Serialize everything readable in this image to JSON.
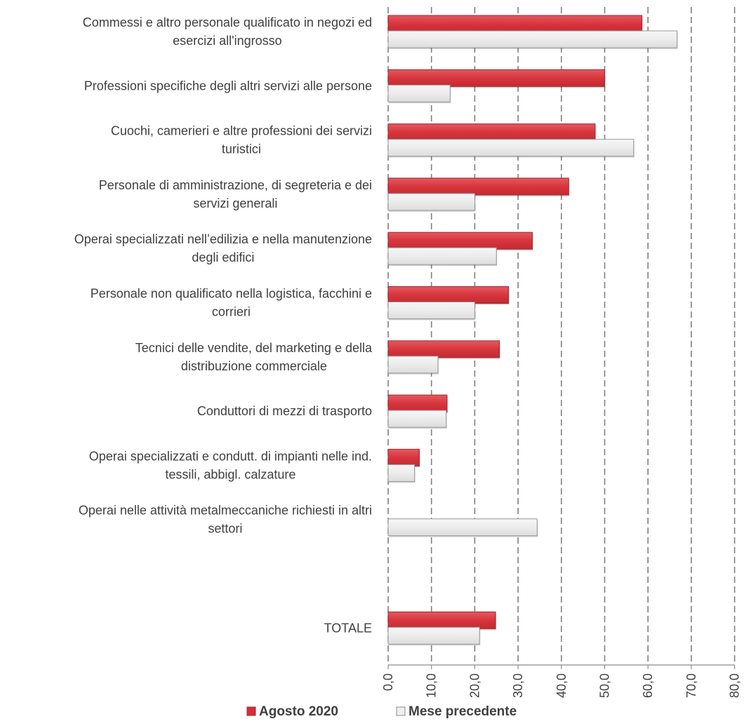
{
  "chart_data": {
    "type": "bar",
    "orientation": "horizontal",
    "categories": [
      [
        "Commessi e altro personale qualificato in negozi ed",
        "esercizi all'ingrosso"
      ],
      [
        "Professioni specifiche degli altri servizi alle persone"
      ],
      [
        "Cuochi, camerieri e altre professioni dei servizi",
        "turistici"
      ],
      [
        "Personale di amministrazione, di segreteria e dei",
        "servizi generali"
      ],
      [
        "Operai specializzati nell’edilizia e nella manutenzione",
        "degli edifici"
      ],
      [
        "Personale non qualificato nella logistica, facchini e",
        "corrieri"
      ],
      [
        "Tecnici delle vendite, del marketing e della",
        "distribuzione commerciale"
      ],
      [
        "Conduttori di mezzi di trasporto"
      ],
      [
        "Operai specializzati e condutt. di impianti nelle ind.",
        "tessili, abbigl. calzature"
      ],
      [
        "Operai nelle attività metalmeccaniche richiesti in altri",
        "settori"
      ],
      [],
      [
        "TOTALE"
      ]
    ],
    "series": [
      {
        "name": "Agosto 2020",
        "color": "#d9383f",
        "values": [
          58.6,
          50.0,
          47.8,
          41.7,
          33.3,
          27.8,
          25.7,
          13.6,
          7.2,
          null,
          null,
          24.8
        ]
      },
      {
        "name": "Mese precedente",
        "color": "#eeeeee",
        "values": [
          66.7,
          14.3,
          56.7,
          20.0,
          25.0,
          20.0,
          11.5,
          13.4,
          6.1,
          34.4,
          null,
          21.1
        ]
      }
    ],
    "x_ticks": [
      "0,0",
      "10,0",
      "20,0",
      "30,0",
      "40,0",
      "50,0",
      "60,0",
      "70,0",
      "80,0"
    ],
    "xlim": [
      0,
      80
    ],
    "grid": "vertical dashed",
    "legend_position": "bottom"
  }
}
